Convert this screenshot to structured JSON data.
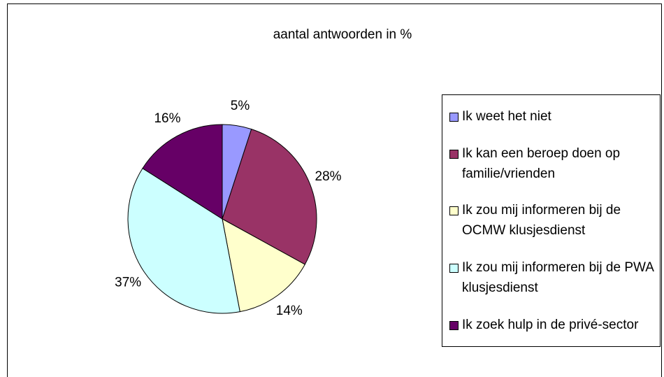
{
  "chart_data": {
    "type": "pie",
    "title": "aantal antwoorden in %",
    "categories": [
      "Ik weet het niet",
      "Ik kan een beroep doen op familie/vrienden",
      "Ik zou mij informeren bij de OCMW klusjesdienst",
      "Ik zou mij informeren bij de PWA klusjesdienst",
      "Ik zoek hulp in de privé-sector"
    ],
    "values": [
      5,
      28,
      14,
      37,
      16
    ],
    "value_labels": [
      "5%",
      "28%",
      "14%",
      "37%",
      "16%"
    ],
    "colors": [
      "#9999ff",
      "#993366",
      "#ffffcc",
      "#ccffff",
      "#660066"
    ],
    "legend": "right"
  }
}
